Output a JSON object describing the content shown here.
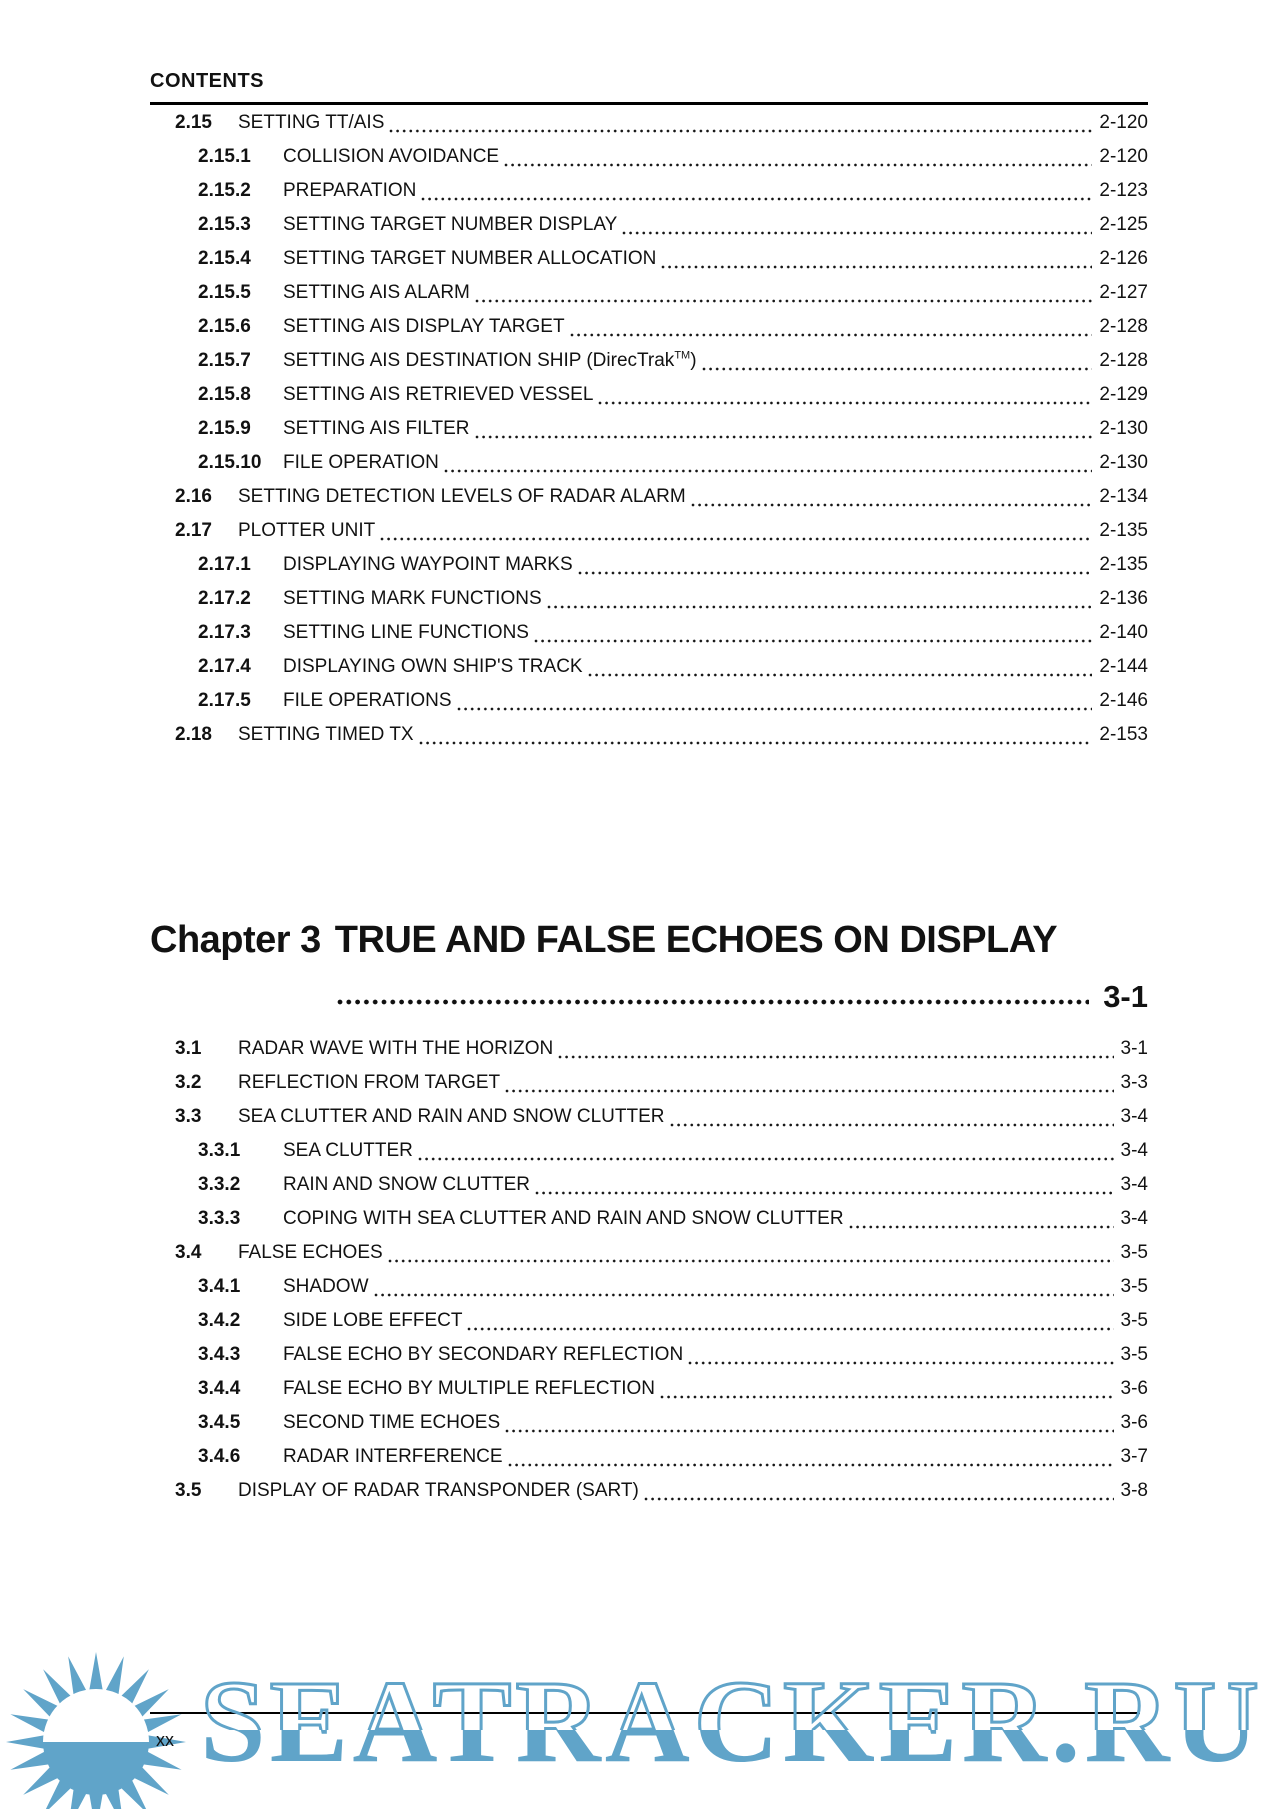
{
  "header": {
    "title": "CONTENTS"
  },
  "page": {
    "footer_page_number": "xx"
  },
  "chapter_heading": {
    "label": "Chapter 3",
    "title": "TRUE AND FALSE ECHOES ON DISPLAY",
    "page": "3-1"
  },
  "toc_sections": [
    {
      "id": "chapter2",
      "entries": [
        {
          "level": 1,
          "num": "2.15",
          "title": "SETTING TT/AIS",
          "page": "2-120"
        },
        {
          "level": 2,
          "num": "2.15.1",
          "title": "COLLISION AVOIDANCE",
          "page": "2-120"
        },
        {
          "level": 2,
          "num": "2.15.2",
          "title": "PREPARATION",
          "page": "2-123"
        },
        {
          "level": 2,
          "num": "2.15.3",
          "title": "SETTING TARGET NUMBER DISPLAY",
          "page": "2-125"
        },
        {
          "level": 2,
          "num": "2.15.4",
          "title": "SETTING TARGET NUMBER ALLOCATION",
          "page": "2-126"
        },
        {
          "level": 2,
          "num": "2.15.5",
          "title": "SETTING AIS ALARM",
          "page": "2-127"
        },
        {
          "level": 2,
          "num": "2.15.6",
          "title": "SETTING AIS DISPLAY TARGET",
          "page": "2-128"
        },
        {
          "level": 2,
          "num": "2.15.7",
          "title": "SETTING AIS DESTINATION SHIP (DirecTrak",
          "sup": "TM",
          "tail": ")",
          "page": "2-128"
        },
        {
          "level": 2,
          "num": "2.15.8",
          "title": "SETTING AIS RETRIEVED VESSEL",
          "page": "2-129"
        },
        {
          "level": 2,
          "num": "2.15.9",
          "title": "SETTING AIS FILTER",
          "page": "2-130"
        },
        {
          "level": 2,
          "num": "2.15.10",
          "title": "FILE OPERATION",
          "page": "2-130"
        },
        {
          "level": 1,
          "num": "2.16",
          "title": "SETTING DETECTION LEVELS OF RADAR ALARM",
          "page": "2-134"
        },
        {
          "level": 1,
          "num": "2.17",
          "title": "PLOTTER UNIT",
          "page": "2-135"
        },
        {
          "level": 2,
          "num": "2.17.1",
          "title": "DISPLAYING WAYPOINT MARKS",
          "page": "2-135"
        },
        {
          "level": 2,
          "num": "2.17.2",
          "title": "SETTING MARK FUNCTIONS",
          "page": "2-136"
        },
        {
          "level": 2,
          "num": "2.17.3",
          "title": "SETTING LINE FUNCTIONS",
          "page": "2-140"
        },
        {
          "level": 2,
          "num": "2.17.4",
          "title": "DISPLAYING OWN SHIP'S TRACK",
          "page": "2-144"
        },
        {
          "level": 2,
          "num": "2.17.5",
          "title": "FILE OPERATIONS",
          "page": "2-146"
        },
        {
          "level": 1,
          "num": "2.18",
          "title": "SETTING TIMED TX",
          "page": "2-153"
        }
      ]
    },
    {
      "id": "chapter3",
      "entries": [
        {
          "level": 1,
          "num": "3.1",
          "title": "RADAR WAVE WITH THE HORIZON",
          "page": "3-1"
        },
        {
          "level": 1,
          "num": "3.2",
          "title": "REFLECTION FROM TARGET",
          "page": "3-3"
        },
        {
          "level": 1,
          "num": "3.3",
          "title": "SEA CLUTTER AND RAIN AND SNOW CLUTTER",
          "page": "3-4"
        },
        {
          "level": 2,
          "num": "3.3.1",
          "title": "SEA CLUTTER",
          "page": "3-4"
        },
        {
          "level": 2,
          "num": "3.3.2",
          "title": "RAIN AND SNOW CLUTTER",
          "page": "3-4"
        },
        {
          "level": 2,
          "num": "3.3.3",
          "title": "COPING WITH SEA CLUTTER AND RAIN AND SNOW CLUTTER",
          "page": "3-4"
        },
        {
          "level": 1,
          "num": "3.4",
          "title": "FALSE ECHOES",
          "page": "3-5"
        },
        {
          "level": 2,
          "num": "3.4.1",
          "title": "SHADOW",
          "page": "3-5"
        },
        {
          "level": 2,
          "num": "3.4.2",
          "title": "SIDE LOBE EFFECT",
          "page": "3-5"
        },
        {
          "level": 2,
          "num": "3.4.3",
          "title": "FALSE ECHO BY SECONDARY REFLECTION",
          "page": "3-5"
        },
        {
          "level": 2,
          "num": "3.4.4",
          "title": "FALSE ECHO BY MULTIPLE REFLECTION",
          "page": "3-6"
        },
        {
          "level": 2,
          "num": "3.4.5",
          "title": "SECOND TIME ECHOES",
          "page": "3-6"
        },
        {
          "level": 2,
          "num": "3.4.6",
          "title": "RADAR INTERFERENCE",
          "page": "3-7"
        },
        {
          "level": 1,
          "num": "3.5",
          "title": "DISPLAY OF RADAR TRANSPONDER (SART)",
          "page": "3-8"
        }
      ]
    }
  ],
  "watermark": {
    "text": "SEATRACKER.RU",
    "color": "#60a4c9",
    "logo": "sun-logo"
  }
}
